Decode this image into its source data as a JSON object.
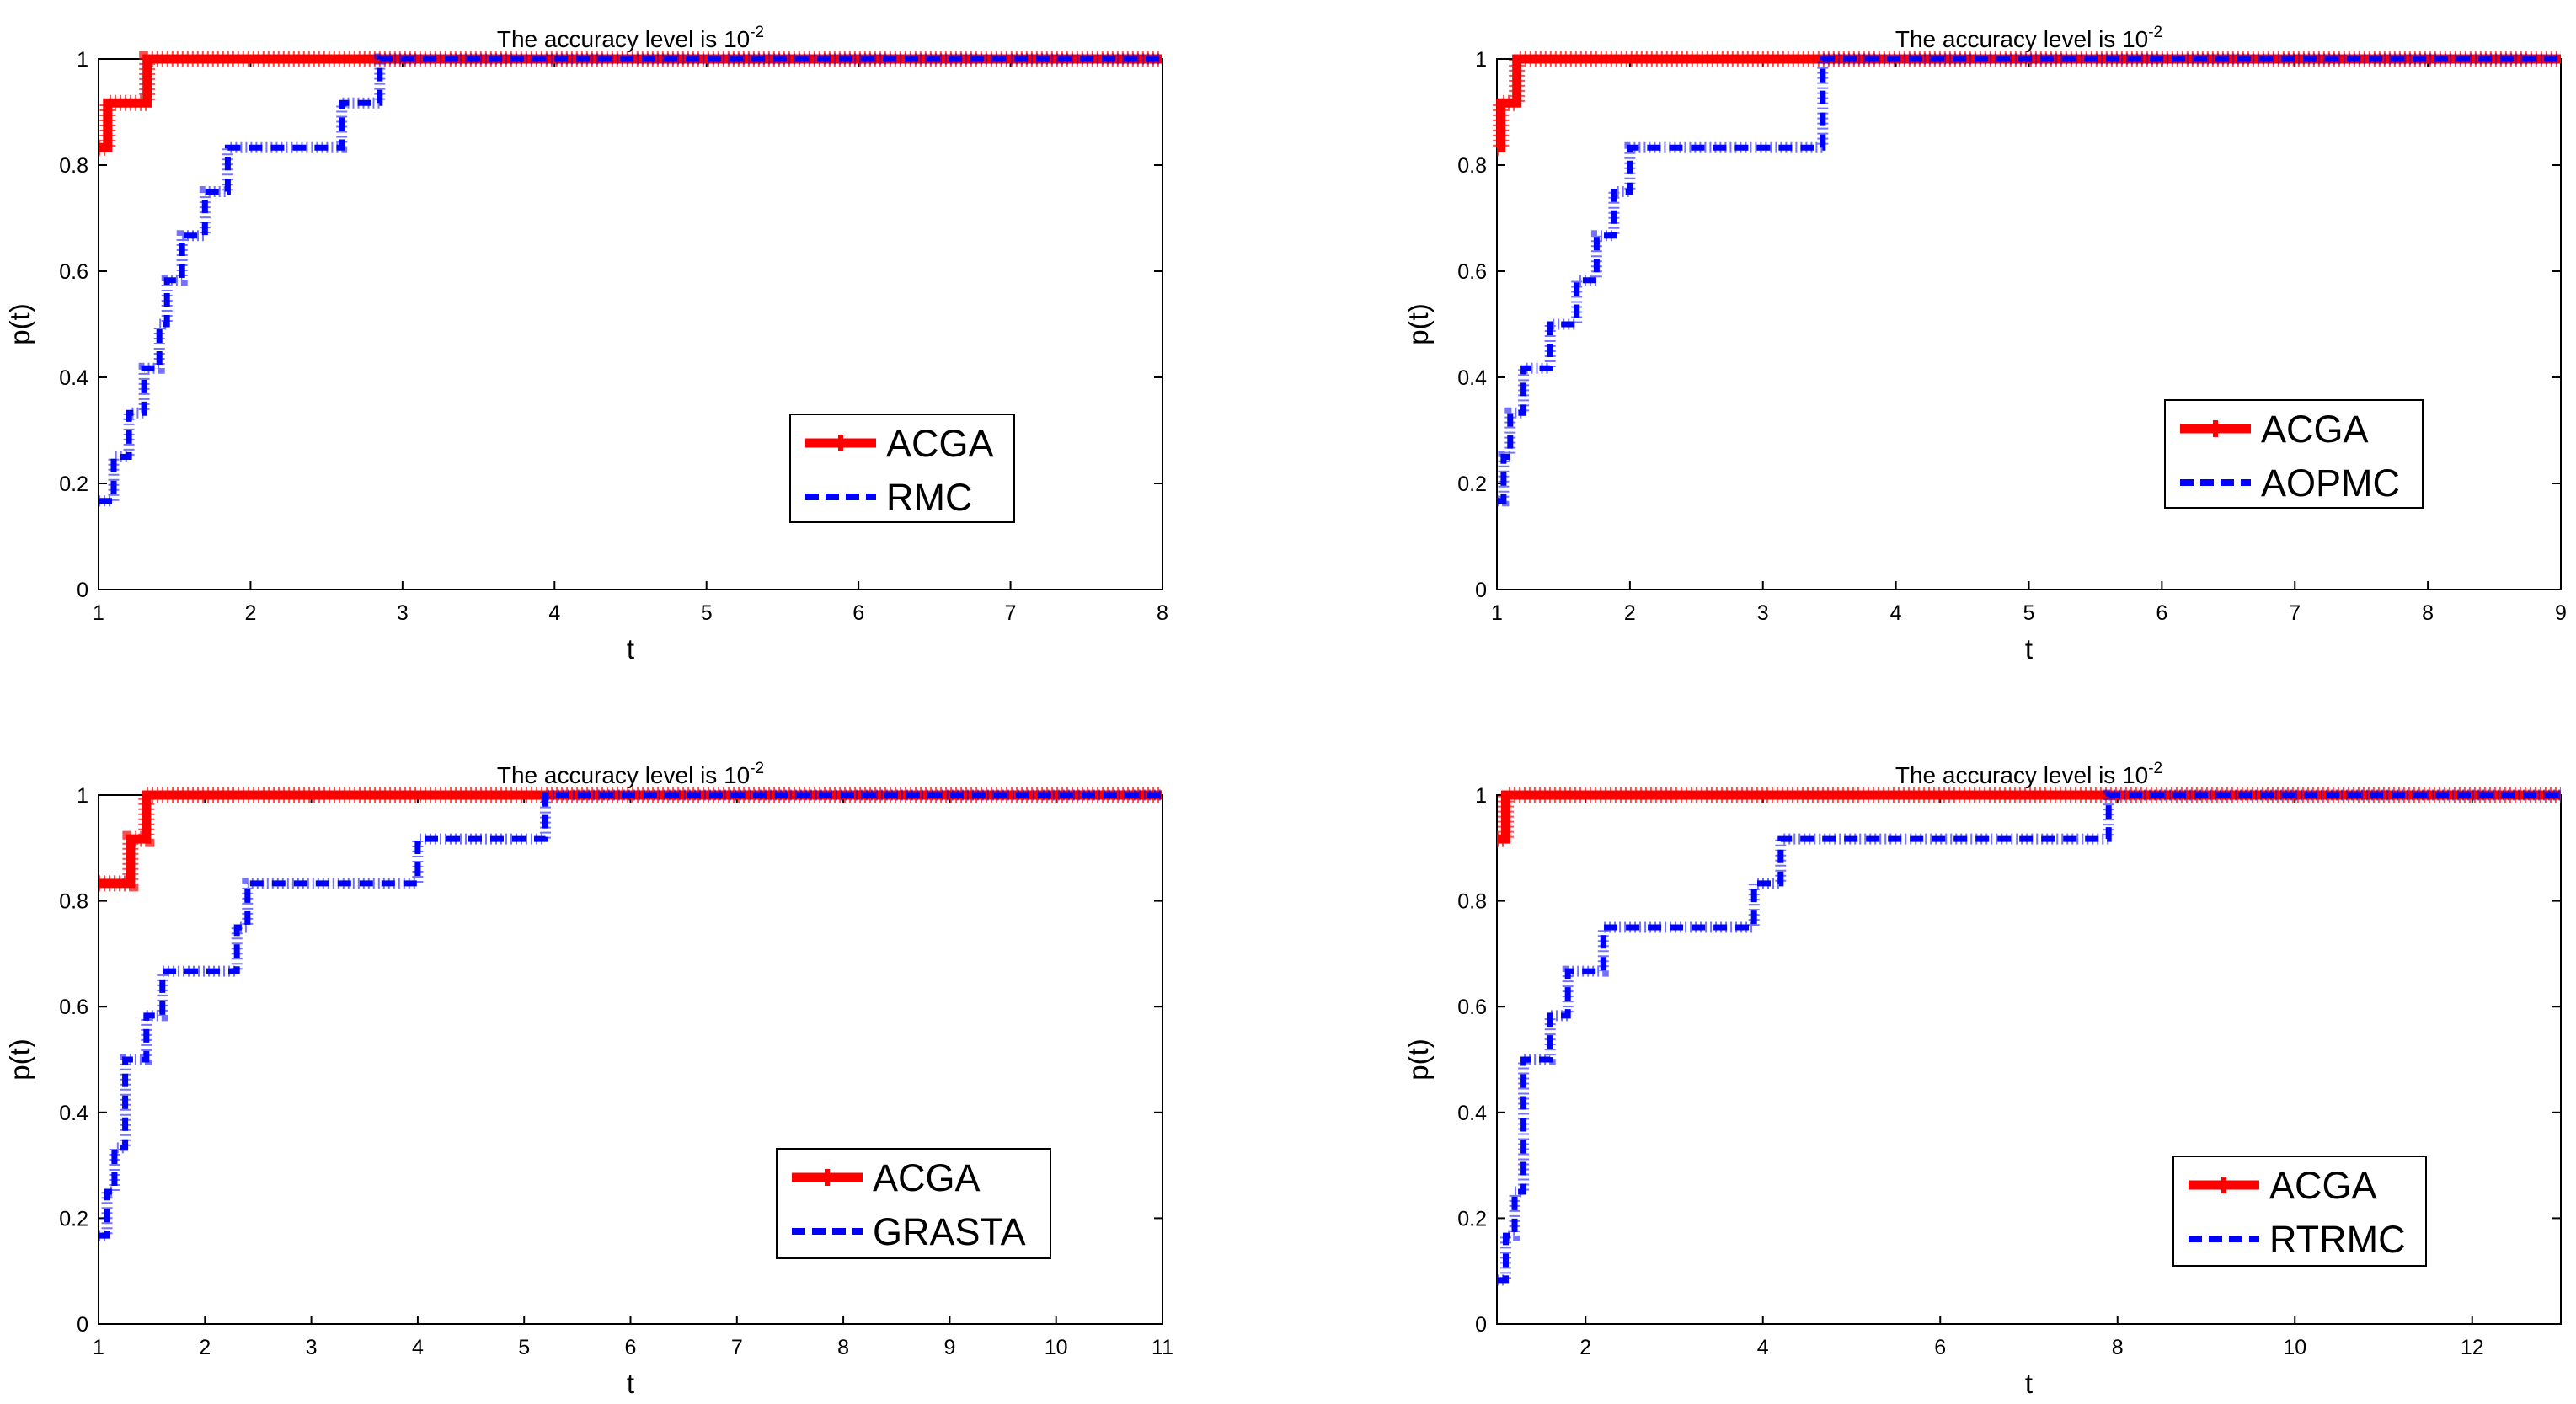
{
  "chart_data": [
    {
      "type": "line",
      "title": "The accuracy level is 10",
      "title_exponent": "-2",
      "xlabel": "t",
      "ylabel": "p(t)",
      "xlim": [
        1,
        8
      ],
      "ylim": [
        0,
        1
      ],
      "xticks": [
        "1",
        "2",
        "3",
        "4",
        "5",
        "6",
        "7",
        "8"
      ],
      "yticks": [
        "0",
        "0.2",
        "0.4",
        "0.6",
        "0.8",
        "1"
      ],
      "legend_position": "lower-right",
      "series": [
        {
          "name": "ACGA",
          "color": "#ff0000",
          "style": "solid",
          "x": [
            1,
            1.06,
            1.32,
            8
          ],
          "y": [
            0.833,
            0.917,
            1,
            1
          ]
        },
        {
          "name": "RMC",
          "color": "#0000ff",
          "style": "dashed",
          "x": [
            1,
            1.1,
            1.2,
            1.3,
            1.4,
            1.45,
            1.55,
            1.7,
            1.85,
            2.6,
            2.85,
            8
          ],
          "y": [
            0.167,
            0.25,
            0.333,
            0.417,
            0.5,
            0.583,
            0.667,
            0.75,
            0.833,
            0.917,
            1,
            1
          ]
        }
      ]
    },
    {
      "type": "line",
      "title": "The accuracy level is 10",
      "title_exponent": "-2",
      "xlabel": "t",
      "ylabel": "p(t)",
      "xlim": [
        1,
        9
      ],
      "ylim": [
        0,
        1
      ],
      "xticks": [
        "1",
        "2",
        "3",
        "4",
        "5",
        "6",
        "7",
        "8",
        "9"
      ],
      "yticks": [
        "0",
        "0.2",
        "0.4",
        "0.6",
        "0.8",
        "1"
      ],
      "legend_position": "lower-right",
      "series": [
        {
          "name": "ACGA",
          "color": "#ff0000",
          "style": "solid",
          "x": [
            1,
            1.03,
            1.1,
            1.15,
            9
          ],
          "y": [
            0.833,
            0.917,
            0.917,
            1,
            1
          ]
        },
        {
          "name": "AOPMC",
          "color": "#0000ff",
          "style": "dashed",
          "x": [
            1,
            1.05,
            1.1,
            1.2,
            1.4,
            1.6,
            1.75,
            1.88,
            2.0,
            3.45,
            9
          ],
          "y": [
            0.167,
            0.25,
            0.333,
            0.417,
            0.5,
            0.583,
            0.667,
            0.75,
            0.833,
            1,
            1
          ]
        }
      ]
    },
    {
      "type": "line",
      "title": "The accuracy level is 10",
      "title_exponent": "-2",
      "xlabel": "t",
      "ylabel": "p(t)",
      "xlim": [
        1,
        11
      ],
      "ylim": [
        0,
        1
      ],
      "xticks": [
        "1",
        "2",
        "3",
        "4",
        "5",
        "6",
        "7",
        "8",
        "9",
        "10",
        "11"
      ],
      "yticks": [
        "0",
        "0.2",
        "0.4",
        "0.6",
        "0.8",
        "1"
      ],
      "legend_position": "lower-right",
      "series": [
        {
          "name": "ACGA",
          "color": "#ff0000",
          "style": "solid",
          "x": [
            1,
            1.3,
            1.45,
            11
          ],
          "y": [
            0.833,
            0.917,
            1,
            1
          ]
        },
        {
          "name": "GRASTA",
          "color": "#0000ff",
          "style": "dashed",
          "x": [
            1,
            1.08,
            1.15,
            1.25,
            1.45,
            1.6,
            2.3,
            2.4,
            4.0,
            5.2,
            11
          ],
          "y": [
            0.167,
            0.25,
            0.333,
            0.5,
            0.583,
            0.667,
            0.75,
            0.833,
            0.917,
            1,
            1
          ]
        }
      ]
    },
    {
      "type": "line",
      "title": "The accuracy level is 10",
      "title_exponent": "-2",
      "xlabel": "t",
      "ylabel": "p(t)",
      "xlim": [
        1,
        13
      ],
      "ylim": [
        0,
        1
      ],
      "xticks": [
        "2",
        "4",
        "6",
        "8",
        "10",
        "12"
      ],
      "yticks": [
        "0",
        "0.2",
        "0.4",
        "0.6",
        "0.8",
        "1"
      ],
      "legend_position": "lower-right",
      "series": [
        {
          "name": "ACGA",
          "color": "#ff0000",
          "style": "solid",
          "x": [
            1,
            1.1,
            13
          ],
          "y": [
            0.917,
            1,
            1
          ]
        },
        {
          "name": "RTRMC",
          "color": "#0000ff",
          "style": "dashed",
          "x": [
            1,
            1.1,
            1.2,
            1.3,
            1.6,
            1.8,
            2.2,
            2.3,
            3.9,
            4.2,
            7.9,
            13
          ],
          "y": [
            0.083,
            0.167,
            0.25,
            0.5,
            0.583,
            0.667,
            0.75,
            0.75,
            0.833,
            0.917,
            1,
            1
          ]
        }
      ]
    }
  ]
}
